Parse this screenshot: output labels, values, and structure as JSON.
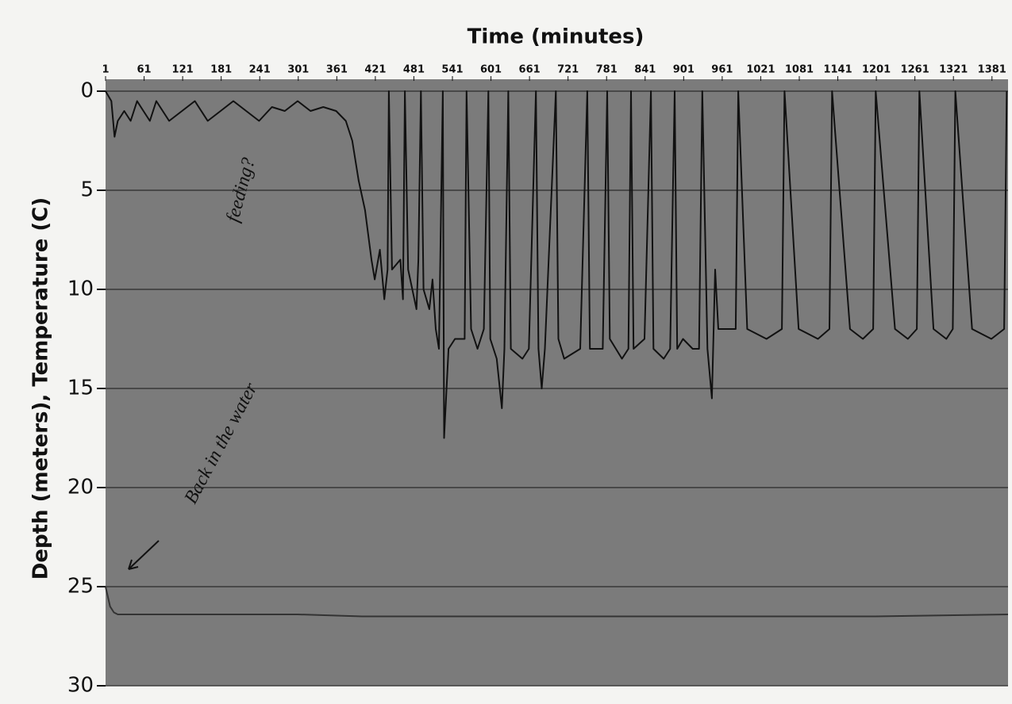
{
  "chart_data": {
    "type": "line",
    "title": "Time (minutes)",
    "y_label": "Depth (meters), Temperature (C)",
    "annotations": [
      "feeding?",
      "Back in the water"
    ],
    "xlim": [
      1,
      1406
    ],
    "xticks": [
      1,
      61,
      121,
      181,
      241,
      301,
      361,
      421,
      481,
      541,
      601,
      661,
      721,
      781,
      841,
      901,
      961,
      1021,
      1081,
      1141,
      1201,
      1261,
      1321,
      1381
    ],
    "ylim": [
      0,
      30
    ],
    "yticks": [
      0,
      5,
      10,
      15,
      20,
      25,
      30
    ],
    "y_inverted": true,
    "grid": true,
    "series": [
      {
        "color": "#111111",
        "x": [
          1,
          10,
          15,
          20,
          30,
          40,
          50,
          60,
          70,
          80,
          90,
          100,
          120,
          140,
          160,
          180,
          200,
          220,
          240,
          260,
          280,
          300,
          320,
          340,
          360,
          375,
          385,
          395,
          405,
          415,
          420,
          428,
          435,
          440,
          442,
          447,
          460,
          464,
          467,
          472,
          485,
          488,
          492,
          496,
          505,
          510,
          515,
          520,
          526,
          528,
          535,
          545,
          560,
          563,
          570,
          580,
          590,
          597,
          600,
          610,
          618,
          622,
          628,
          632,
          650,
          660,
          671,
          675,
          680,
          685,
          702,
          706,
          715,
          740,
          751,
          755,
          775,
          782,
          786,
          805,
          815,
          819,
          823,
          840,
          850,
          854,
          870,
          880,
          887,
          891,
          900,
          915,
          925,
          930,
          938,
          945,
          950,
          955,
          982,
          986,
          1000,
          1030,
          1054,
          1058,
          1080,
          1110,
          1128,
          1132,
          1160,
          1180,
          1196,
          1200,
          1230,
          1250,
          1264,
          1268,
          1290,
          1310,
          1320,
          1324,
          1350,
          1380,
          1400,
          1404
        ],
        "values": [
          0,
          0.5,
          2.3,
          1.5,
          1,
          1.5,
          0.5,
          1,
          1.5,
          0.5,
          1,
          1.5,
          1,
          0.5,
          1.5,
          1,
          0.5,
          1,
          1.5,
          0.8,
          1,
          0.5,
          1,
          0.8,
          1,
          1.5,
          2.5,
          4.5,
          6,
          8.5,
          9.5,
          8,
          10.5,
          9,
          0,
          9,
          8.5,
          10.5,
          0,
          9,
          11,
          8.5,
          0,
          10,
          11,
          9.5,
          12,
          13,
          0,
          17.5,
          13,
          12.5,
          12.5,
          0,
          12,
          13,
          12,
          0,
          12.5,
          13.5,
          16,
          13,
          0,
          13,
          13.5,
          13,
          0,
          13,
          15,
          13,
          0,
          12.5,
          13.5,
          13,
          0,
          13,
          13,
          0,
          12.5,
          13.5,
          13,
          0,
          13,
          12.5,
          0,
          13,
          13.5,
          13,
          0,
          13,
          12.5,
          13,
          13,
          0,
          13,
          15.5,
          9,
          12,
          12,
          0,
          12,
          12.5,
          12,
          0,
          12,
          12.5,
          12,
          0,
          12,
          12.5,
          12,
          0,
          12,
          12.5,
          12,
          0,
          12,
          12.5,
          12,
          0,
          12,
          12.5,
          12,
          0
        ]
      },
      {
        "color": "#333333",
        "x": [
          1,
          8,
          14,
          20,
          100,
          300,
          400,
          600,
          800,
          1000,
          1200,
          1406
        ],
        "values": [
          25,
          26,
          26.3,
          26.4,
          26.4,
          26.4,
          26.5,
          26.5,
          26.5,
          26.5,
          26.5,
          26.4
        ]
      }
    ]
  }
}
